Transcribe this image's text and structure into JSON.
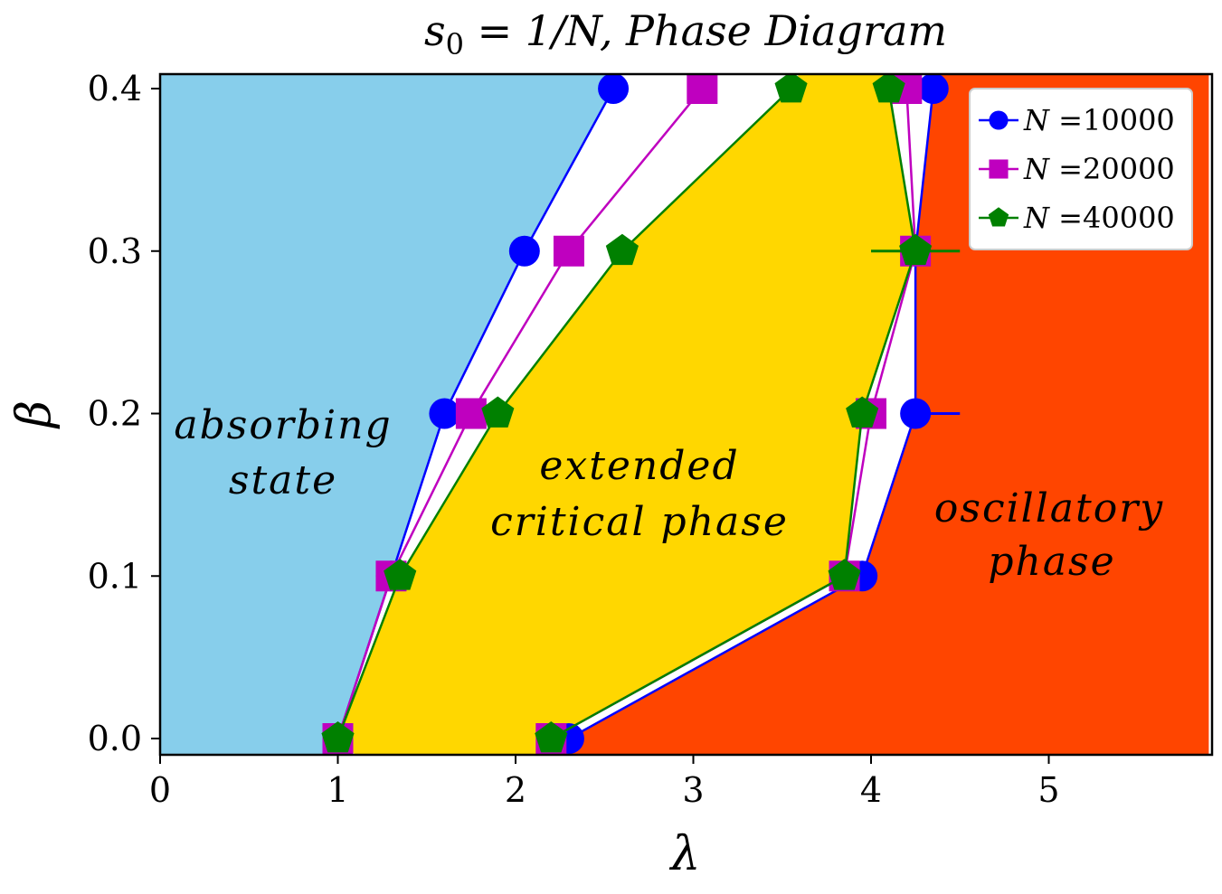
{
  "chart_data": {
    "type": "line",
    "title": "s0 = 1/N, Phase Diagram",
    "title_parts": {
      "s": "s",
      "sub": "0",
      "rest": " = 1/N, Phase Diagram"
    },
    "xlabel": "λ",
    "ylabel": "β",
    "xlim": [
      0,
      5.9
    ],
    "ylim": [
      -0.01,
      0.41
    ],
    "xticks": [
      0,
      1,
      2,
      3,
      4,
      5
    ],
    "yticks": [
      0.0,
      0.1,
      0.2,
      0.3,
      0.4
    ],
    "xtick_labels": [
      "0",
      "1",
      "2",
      "3",
      "4",
      "5"
    ],
    "ytick_labels": [
      "0.0",
      "0.1",
      "0.2",
      "0.3",
      "0.4"
    ],
    "grid": false,
    "legend_position": "top-right",
    "regions": [
      {
        "name": "absorbing",
        "label_lines": [
          "absorbing",
          "state"
        ],
        "color": "#87CEEB",
        "boundary": [
          [
            0,
            -0.01
          ],
          [
            0,
            0.41
          ],
          [
            2.55,
            0.41
          ],
          [
            2.55,
            0.4
          ],
          [
            2.05,
            0.3
          ],
          [
            1.6,
            0.2
          ],
          [
            1.3,
            0.1
          ],
          [
            1.0,
            0.0
          ],
          [
            0.95,
            -0.01
          ]
        ]
      },
      {
        "name": "critical",
        "label_lines": [
          "extended",
          "critical phase"
        ],
        "color": "#FFD700",
        "boundary": [
          [
            1.1,
            -0.01
          ],
          [
            1.0,
            0.0
          ],
          [
            1.35,
            0.1
          ],
          [
            1.9,
            0.2
          ],
          [
            2.6,
            0.3
          ],
          [
            3.55,
            0.4
          ],
          [
            3.6,
            0.41
          ],
          [
            4.1,
            0.41
          ],
          [
            4.1,
            0.4
          ],
          [
            4.25,
            0.3
          ],
          [
            3.95,
            0.2
          ],
          [
            3.85,
            0.1
          ],
          [
            2.2,
            0.0
          ],
          [
            2.2,
            -0.01
          ]
        ]
      },
      {
        "name": "oscillatory",
        "label_lines": [
          "oscillatory",
          "phase"
        ],
        "color": "#FF4500",
        "boundary": [
          [
            2.3,
            -0.01
          ],
          [
            2.3,
            0.0
          ],
          [
            3.95,
            0.1
          ],
          [
            4.25,
            0.2
          ],
          [
            4.25,
            0.3
          ],
          [
            4.35,
            0.4
          ],
          [
            4.4,
            0.41
          ],
          [
            5.9,
            0.41
          ],
          [
            5.9,
            -0.01
          ]
        ]
      }
    ],
    "series": [
      {
        "name": "N =10000",
        "legend_label": "N =10000",
        "legend_n": "N",
        "legend_rest": " =10000",
        "color": "#0000FF",
        "marker": "circle",
        "lower": {
          "x": [
            1.0,
            1.3,
            1.6,
            2.05,
            2.55
          ],
          "y": [
            0.0,
            0.1,
            0.2,
            0.3,
            0.4
          ]
        },
        "upper": {
          "x": [
            2.3,
            3.95,
            4.25,
            4.25,
            4.35
          ],
          "y": [
            0.0,
            0.1,
            0.2,
            0.3,
            0.4
          ]
        },
        "xerr": [
          {
            "x": 4.25,
            "y": 0.2,
            "minus": 0.0,
            "plus": 0.25
          }
        ]
      },
      {
        "name": "N =20000",
        "legend_label": "N =20000",
        "legend_n": "N",
        "legend_rest": " =20000",
        "color": "#BF00BF",
        "marker": "square",
        "lower": {
          "x": [
            1.0,
            1.3,
            1.75,
            2.3,
            3.05
          ],
          "y": [
            0.0,
            0.1,
            0.2,
            0.3,
            0.4
          ]
        },
        "upper": {
          "x": [
            2.2,
            3.85,
            4.0,
            4.25,
            4.2
          ],
          "y": [
            0.0,
            0.1,
            0.2,
            0.3,
            0.4
          ]
        },
        "xerr": []
      },
      {
        "name": "N =40000",
        "legend_label": "N =40000",
        "legend_n": "N",
        "legend_rest": " =40000",
        "color": "#008000",
        "marker": "pentagon",
        "lower": {
          "x": [
            1.0,
            1.35,
            1.9,
            2.6,
            3.55
          ],
          "y": [
            0.0,
            0.1,
            0.2,
            0.3,
            0.4
          ]
        },
        "upper": {
          "x": [
            2.2,
            3.85,
            3.95,
            4.25,
            4.1
          ],
          "y": [
            0.0,
            0.1,
            0.2,
            0.3,
            0.4
          ]
        },
        "xerr": [
          {
            "x": 4.25,
            "y": 0.3,
            "minus": 0.25,
            "plus": 0.25
          }
        ]
      }
    ]
  }
}
